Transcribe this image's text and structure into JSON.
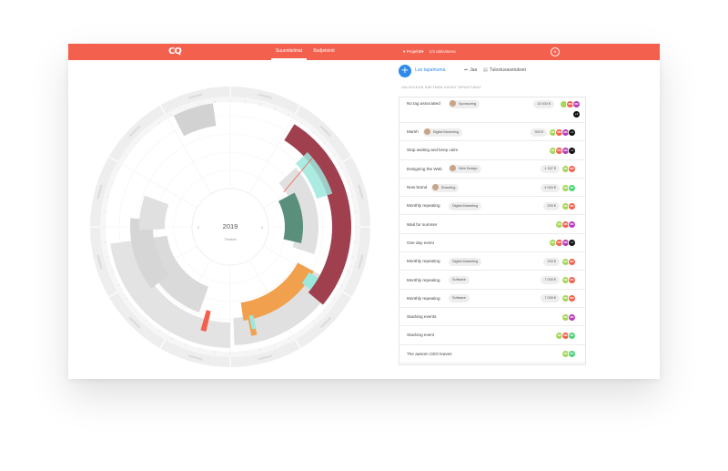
{
  "header": {
    "logo": "CQ",
    "tabs": [
      {
        "label": "Suunnitelmat",
        "active": true
      },
      {
        "label": "Budjetointi",
        "active": false
      }
    ],
    "filter_label": "Projektit",
    "filter_count": "1/4 aktiivisena",
    "user_initial": "N"
  },
  "toolbar": {
    "add_symbol": "+",
    "primary_label": "Luo tapahtuma",
    "share_label": "Jaa",
    "print_label": "Tulostusasetukset"
  },
  "wheel": {
    "year": "2019",
    "today_label": "Tänään",
    "prev_symbol": "‹",
    "next_symbol": "›"
  },
  "list": {
    "section_title": "Valikoidun näkymän kaikki tapahtumat",
    "rows": [
      {
        "name": "No tag associated",
        "tag": "Sponsoring",
        "tag_person": true,
        "amount": "10 000 €",
        "avatars": [
          {
            "label": "",
            "color": "#a5d65a"
          },
          {
            "label": "MK",
            "color": "#f4604e"
          },
          {
            "label": "MK",
            "color": "#b83dba"
          },
          {
            "label": "+1",
            "color": "#111111"
          }
        ],
        "tall": true
      },
      {
        "name": "Marsh",
        "tag": "Digital Marketing",
        "tag_person": true,
        "amount": "300 €",
        "avatars": [
          {
            "label": "NK",
            "color": "#a5d65a"
          },
          {
            "label": "MK",
            "color": "#f4604e"
          },
          {
            "label": "MK",
            "color": "#b83dba"
          },
          {
            "label": "+1",
            "color": "#111111"
          }
        ]
      },
      {
        "name": "Stop waiting and keep calm",
        "tag": "",
        "tag_person": false,
        "amount": "",
        "avatars": [
          {
            "label": "NK",
            "color": "#a5d65a"
          },
          {
            "label": "MK",
            "color": "#f4604e"
          },
          {
            "label": "MK",
            "color": "#b83dba"
          },
          {
            "label": "+1",
            "color": "#111111"
          }
        ]
      },
      {
        "name": "Designing the Web",
        "tag": "Web Design",
        "tag_person": true,
        "amount": "1 337 €",
        "avatars": [
          {
            "label": "NK",
            "color": "#a5d65a"
          },
          {
            "label": "MK",
            "color": "#f4604e"
          }
        ]
      },
      {
        "name": "New brand",
        "tag": "Branding",
        "tag_person": true,
        "amount": "4 000 €",
        "avatars": [
          {
            "label": "MK",
            "color": "#a5d65a"
          },
          {
            "label": "NK",
            "color": "#4cd37a"
          }
        ]
      },
      {
        "name": "Monthly repeating",
        "tag": "Digital Marketing",
        "tag_person": false,
        "amount": "200 €",
        "avatars": [
          {
            "label": "NK",
            "color": "#a5d65a"
          },
          {
            "label": "MK",
            "color": "#f4604e"
          }
        ]
      },
      {
        "name": "Wait for summer",
        "tag": "",
        "tag_person": false,
        "amount": "",
        "avatars": [
          {
            "label": "NK",
            "color": "#a5d65a"
          },
          {
            "label": "MK",
            "color": "#f4604e"
          },
          {
            "label": "MK",
            "color": "#b83dba"
          }
        ]
      },
      {
        "name": "One day event",
        "tag": "",
        "tag_person": false,
        "amount": "",
        "avatars": [
          {
            "label": "NK",
            "color": "#a5d65a"
          },
          {
            "label": "MK",
            "color": "#f4604e"
          },
          {
            "label": "MK",
            "color": "#b83dba"
          },
          {
            "label": "+1",
            "color": "#111111"
          }
        ]
      },
      {
        "name": "Monthly repeating",
        "tag": "Digital Marketing",
        "tag_person": false,
        "amount": "200 €",
        "avatars": [
          {
            "label": "NK",
            "color": "#a5d65a"
          },
          {
            "label": "MK",
            "color": "#f4604e"
          }
        ]
      },
      {
        "name": "Monthly repeating",
        "tag": "Software",
        "tag_person": false,
        "amount": "7 000 €",
        "avatars": [
          {
            "label": "NK",
            "color": "#a5d65a"
          },
          {
            "label": "MK",
            "color": "#f4604e"
          }
        ]
      },
      {
        "name": "Monthly repeating",
        "tag": "Software",
        "tag_person": false,
        "amount": "7 000 €",
        "avatars": [
          {
            "label": "NK",
            "color": "#a5d65a"
          },
          {
            "label": "MK",
            "color": "#f4604e"
          }
        ]
      },
      {
        "name": "Stacking events",
        "tag": "",
        "tag_person": false,
        "amount": "",
        "avatars": [
          {
            "label": "NK",
            "color": "#a5d65a"
          },
          {
            "label": "MK",
            "color": "#b83dba"
          }
        ]
      },
      {
        "name": "Stacking event",
        "tag": "",
        "tag_person": false,
        "amount": "",
        "avatars": [
          {
            "label": "NK",
            "color": "#a5d65a"
          },
          {
            "label": "MK",
            "color": "#f4604e"
          },
          {
            "label": "NK",
            "color": "#4cd37a"
          }
        ]
      },
      {
        "name": "The awsom CEO leaves",
        "tag": "",
        "tag_person": false,
        "amount": "",
        "avatars": [
          {
            "label": "NK",
            "color": "#a5d65a"
          },
          {
            "label": "NK",
            "color": "#4cd37a"
          }
        ]
      }
    ]
  },
  "colors": {
    "brand": "#f4604e",
    "accent_blue": "#2f8be9",
    "sponsoring": "#a0404f",
    "branding": "#5a8f7b",
    "digital_marketing": "#f1a14d",
    "web_design": "#9de8dc",
    "inactive": "#d6d6d6"
  }
}
